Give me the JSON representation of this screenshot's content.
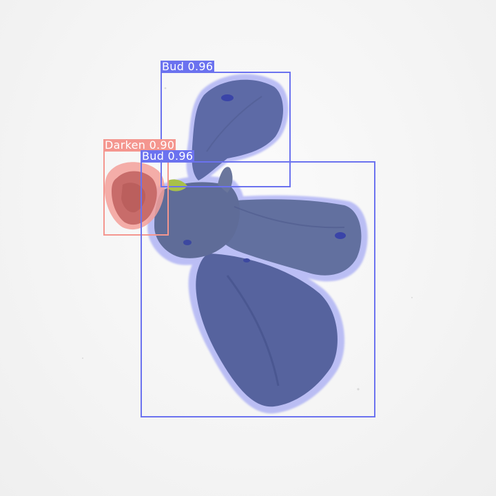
{
  "colors": {
    "bud": "#6b72ef",
    "darken": "#f4968f",
    "bud_mask": "#5a66ec",
    "darken_mask": "#f08a86"
  },
  "detections": [
    {
      "label": "Bud 0.96",
      "class_name": "Bud",
      "confidence": 0.96
    },
    {
      "label": "Darken 0.90",
      "class_name": "Darken",
      "confidence": 0.9
    },
    {
      "label": "Bud 0.96",
      "class_name": "Bud",
      "confidence": 0.96
    }
  ]
}
